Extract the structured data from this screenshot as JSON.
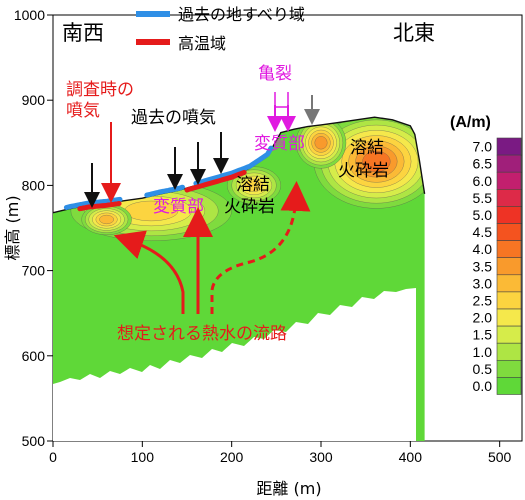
{
  "chart_data": {
    "type": "heatmap",
    "xlabel": "距離 (m)",
    "ylabel": "標高 (m)",
    "xlim": [
      0,
      525
    ],
    "ylim": [
      500,
      1000
    ],
    "xticks": [
      0,
      100,
      200,
      300,
      400,
      500
    ],
    "yticks": [
      500,
      600,
      700,
      800,
      900,
      1000
    ],
    "surface_profile": {
      "x": [
        0,
        20,
        40,
        60,
        80,
        100,
        120,
        140,
        160,
        180,
        200,
        220,
        240,
        255,
        270,
        285,
        300,
        320,
        340,
        360,
        380,
        400,
        405,
        410,
        416
      ],
      "y": [
        768,
        773,
        777,
        779,
        782,
        785,
        790,
        794,
        800,
        806,
        812,
        820,
        834,
        862,
        866,
        869,
        871,
        874,
        877,
        880,
        877,
        870,
        860,
        830,
        790
      ]
    },
    "past_fumarole_zone_x": [
      [
        15,
        75
      ],
      [
        105,
        145
      ],
      [
        160,
        245
      ]
    ],
    "high_temperature_zone_x": [
      [
        30,
        75
      ],
      [
        150,
        215
      ]
    ],
    "colorbar": {
      "title": "(A/m)",
      "min": 0.0,
      "max": 7.0,
      "step": 0.5,
      "ticks": [
        "7.0",
        "6.5",
        "6.0",
        "5.5",
        "5.0",
        "4.5",
        "4.0",
        "3.5",
        "3.0",
        "2.5",
        "2.0",
        "1.5",
        "1.0",
        "0.5",
        "0.0"
      ],
      "colors": [
        "#7a1a83",
        "#a01f7a",
        "#c21f6e",
        "#dd2a48",
        "#ee3325",
        "#f4531f",
        "#f77523",
        "#f99a2c",
        "#fbba36",
        "#fcd440",
        "#f5e84b",
        "#d6ec4a",
        "#aee544",
        "#7fdb3e",
        "#5fd838"
      ]
    },
    "legend": [
      {
        "label": "過去の地すべり域",
        "color": "#2f8fe6"
      },
      {
        "label": "高温域",
        "color": "#e51b1b"
      }
    ],
    "annotations": {
      "southwest": "南西",
      "northeast": "北東",
      "survey_fumarole": [
        "調査時の",
        "噴気"
      ],
      "past_fumarole": "過去の噴気",
      "crack": "亀裂",
      "altered_zone": "変質部",
      "welded_rock": [
        "溶結",
        "火砕岩"
      ],
      "hydrothermal_path": "想定される熱水の流路"
    }
  }
}
